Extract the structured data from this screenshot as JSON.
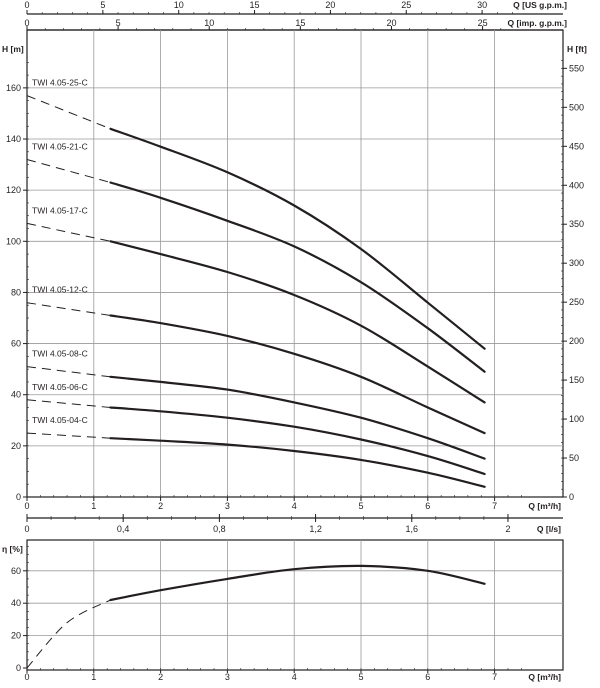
{
  "chart_data": [
    {
      "type": "line",
      "panel": "head",
      "units": {
        "x_top_us": "Q [US g.p.m.]",
        "x_top_imp": "Q [imp. g.p.m.]",
        "y_left": "H [m]",
        "y_right": "H [ft]",
        "x_bottom": "Q [m³/h]"
      },
      "axes": {
        "x": {
          "range": [
            0,
            7.5
          ],
          "ticks": [
            "0",
            "1",
            "2",
            "3",
            "4",
            "5",
            "6",
            "7"
          ]
        },
        "y_left": {
          "range": [
            0,
            175
          ],
          "ticks": [
            "0",
            "20",
            "40",
            "60",
            "80",
            "100",
            "120",
            "140",
            "160"
          ]
        },
        "y_right": {
          "ticks": [
            "0",
            "50",
            "100",
            "150",
            "200",
            "250",
            "300",
            "350",
            "400",
            "450",
            "500",
            "550"
          ]
        },
        "x_top_us": {
          "ticks": [
            "0",
            "5",
            "10",
            "15",
            "20",
            "25",
            "30"
          ]
        },
        "x_top_imp": {
          "ticks": [
            "0",
            "5",
            "10",
            "15",
            "20",
            "25"
          ]
        }
      },
      "grid": true,
      "series": [
        {
          "name": "TWI 4.05-25-C",
          "x": [
            1.25,
            2,
            3,
            4,
            5,
            6,
            6.85
          ],
          "y": [
            144,
            137,
            127,
            114,
            97,
            76,
            58
          ],
          "dashed_extension": {
            "x": [
              0,
              1.25
            ],
            "y": [
              157,
              144
            ]
          }
        },
        {
          "name": "TWI 4.05-21-C",
          "x": [
            1.25,
            2,
            3,
            4,
            5,
            6,
            6.85
          ],
          "y": [
            123,
            117,
            108,
            98,
            84,
            66,
            49
          ],
          "dashed_extension": {
            "x": [
              0,
              1.25
            ],
            "y": [
              132,
              123
            ]
          }
        },
        {
          "name": "TWI 4.05-17-C",
          "x": [
            1.25,
            2,
            3,
            4,
            5,
            6,
            6.85
          ],
          "y": [
            100,
            95,
            88,
            79,
            67,
            51,
            37
          ],
          "dashed_extension": {
            "x": [
              0,
              1.25
            ],
            "y": [
              107,
              100
            ]
          }
        },
        {
          "name": "TWI 4.05-12-C",
          "x": [
            1.25,
            2,
            3,
            4,
            5,
            6,
            6.85
          ],
          "y": [
            71,
            68,
            63,
            56,
            47,
            35,
            25
          ],
          "dashed_extension": {
            "x": [
              0,
              1.25
            ],
            "y": [
              76,
              71
            ]
          }
        },
        {
          "name": "TWI 4.05-08-C",
          "x": [
            1.25,
            2,
            3,
            4,
            5,
            6,
            6.85
          ],
          "y": [
            47,
            45,
            42,
            37,
            31,
            23,
            15
          ],
          "dashed_extension": {
            "x": [
              0,
              1.25
            ],
            "y": [
              51,
              47
            ]
          }
        },
        {
          "name": "TWI 4.05-06-C",
          "x": [
            1.25,
            2,
            3,
            4,
            5,
            6,
            6.85
          ],
          "y": [
            35,
            33.5,
            31,
            27.5,
            22.5,
            16,
            9
          ],
          "dashed_extension": {
            "x": [
              0,
              1.25
            ],
            "y": [
              38,
              35
            ]
          }
        },
        {
          "name": "TWI 4.05-04-C",
          "x": [
            1.25,
            2,
            3,
            4,
            5,
            6,
            6.85
          ],
          "y": [
            23,
            22,
            20.5,
            18,
            14.5,
            9.5,
            4
          ],
          "dashed_extension": {
            "x": [
              0,
              1.25
            ],
            "y": [
              25,
              23
            ]
          }
        }
      ]
    },
    {
      "type": "line",
      "panel": "efficiency",
      "units": {
        "x_top": "Q [l/s]",
        "y_left": "η [%]",
        "x_bottom": "Q [m³/h]"
      },
      "axes": {
        "x": {
          "range": [
            0,
            7.5
          ],
          "ticks": [
            "0",
            "1",
            "2",
            "3",
            "4",
            "5",
            "6",
            "7"
          ]
        },
        "y": {
          "range": [
            0,
            75
          ],
          "ticks": [
            "0",
            "20",
            "40",
            "60"
          ]
        },
        "x_top_ls": {
          "ticks": [
            "0",
            "0,4",
            "0,8",
            "1,2",
            "1,6",
            "2"
          ]
        }
      },
      "grid": true,
      "series": [
        {
          "name": "",
          "x": [
            1.25,
            2,
            3,
            4,
            5,
            6,
            6.85
          ],
          "y": [
            42,
            48,
            55,
            61,
            63,
            60,
            52
          ],
          "dashed_extension": {
            "x": [
              0,
              0.6,
              1.25
            ],
            "y": [
              0,
              28,
              42
            ]
          }
        }
      ]
    }
  ]
}
